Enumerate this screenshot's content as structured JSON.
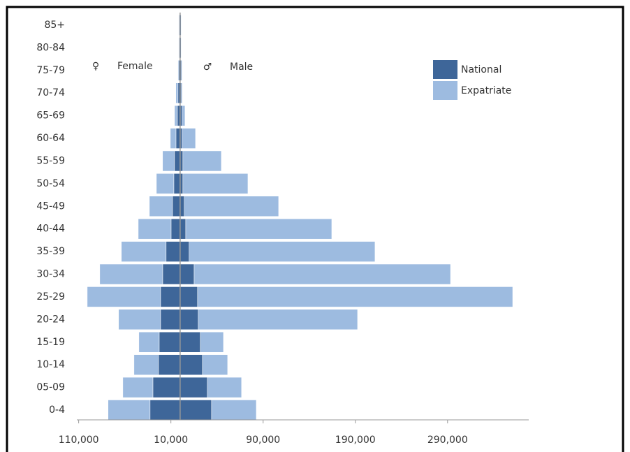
{
  "chart_data": {
    "type": "pyramid",
    "categories": [
      "0-4",
      "05-09",
      "10-14",
      "15-19",
      "20-24",
      "25-29",
      "30-34",
      "35-39",
      "40-44",
      "45-49",
      "50-54",
      "55-59",
      "60-64",
      "65-69",
      "70-74",
      "75-79",
      "80-84",
      "85+"
    ],
    "series": [
      {
        "name": "National",
        "color": "#3e6699",
        "female": [
          -32600,
          -29500,
          -23500,
          -22700,
          -21200,
          -21200,
          -18900,
          -15200,
          -9800,
          -8300,
          -6800,
          -6100,
          -4500,
          -3000,
          -2300,
          -1500,
          -1000,
          -1000
        ],
        "male": [
          34100,
          29500,
          24200,
          22000,
          19700,
          18900,
          15200,
          9800,
          6100,
          4500,
          3000,
          3000,
          2300,
          2300,
          1500,
          1500,
          1000,
          1000
        ]
      },
      {
        "name": "Expatriate",
        "color": "#9dbbe0",
        "female": [
          -45500,
          -32600,
          -26500,
          -22000,
          -45500,
          -79500,
          -68200,
          -48500,
          -35600,
          -25000,
          -18900,
          -12900,
          -6100,
          -3000,
          -2300,
          -800,
          -500,
          -500
        ],
        "male": [
          48500,
          37100,
          27300,
          25000,
          172700,
          341700,
          278000,
          201500,
          158300,
          102300,
          70500,
          41700,
          14400,
          3000,
          800,
          500,
          500,
          500
        ]
      }
    ],
    "annotations": {
      "female": {
        "symbol": "♀",
        "label": "Female"
      },
      "male": {
        "symbol": "♂",
        "label": "Male"
      }
    },
    "xlim": [
      -112000,
      378000
    ],
    "xticks": [
      {
        "value": -110000,
        "label": "110,000"
      },
      {
        "value": -10000,
        "label": "10,000"
      },
      {
        "value": 90000,
        "label": "90,000"
      },
      {
        "value": 190000,
        "label": "190,000"
      },
      {
        "value": 290000,
        "label": "290,000"
      }
    ],
    "legend": "top-right"
  }
}
